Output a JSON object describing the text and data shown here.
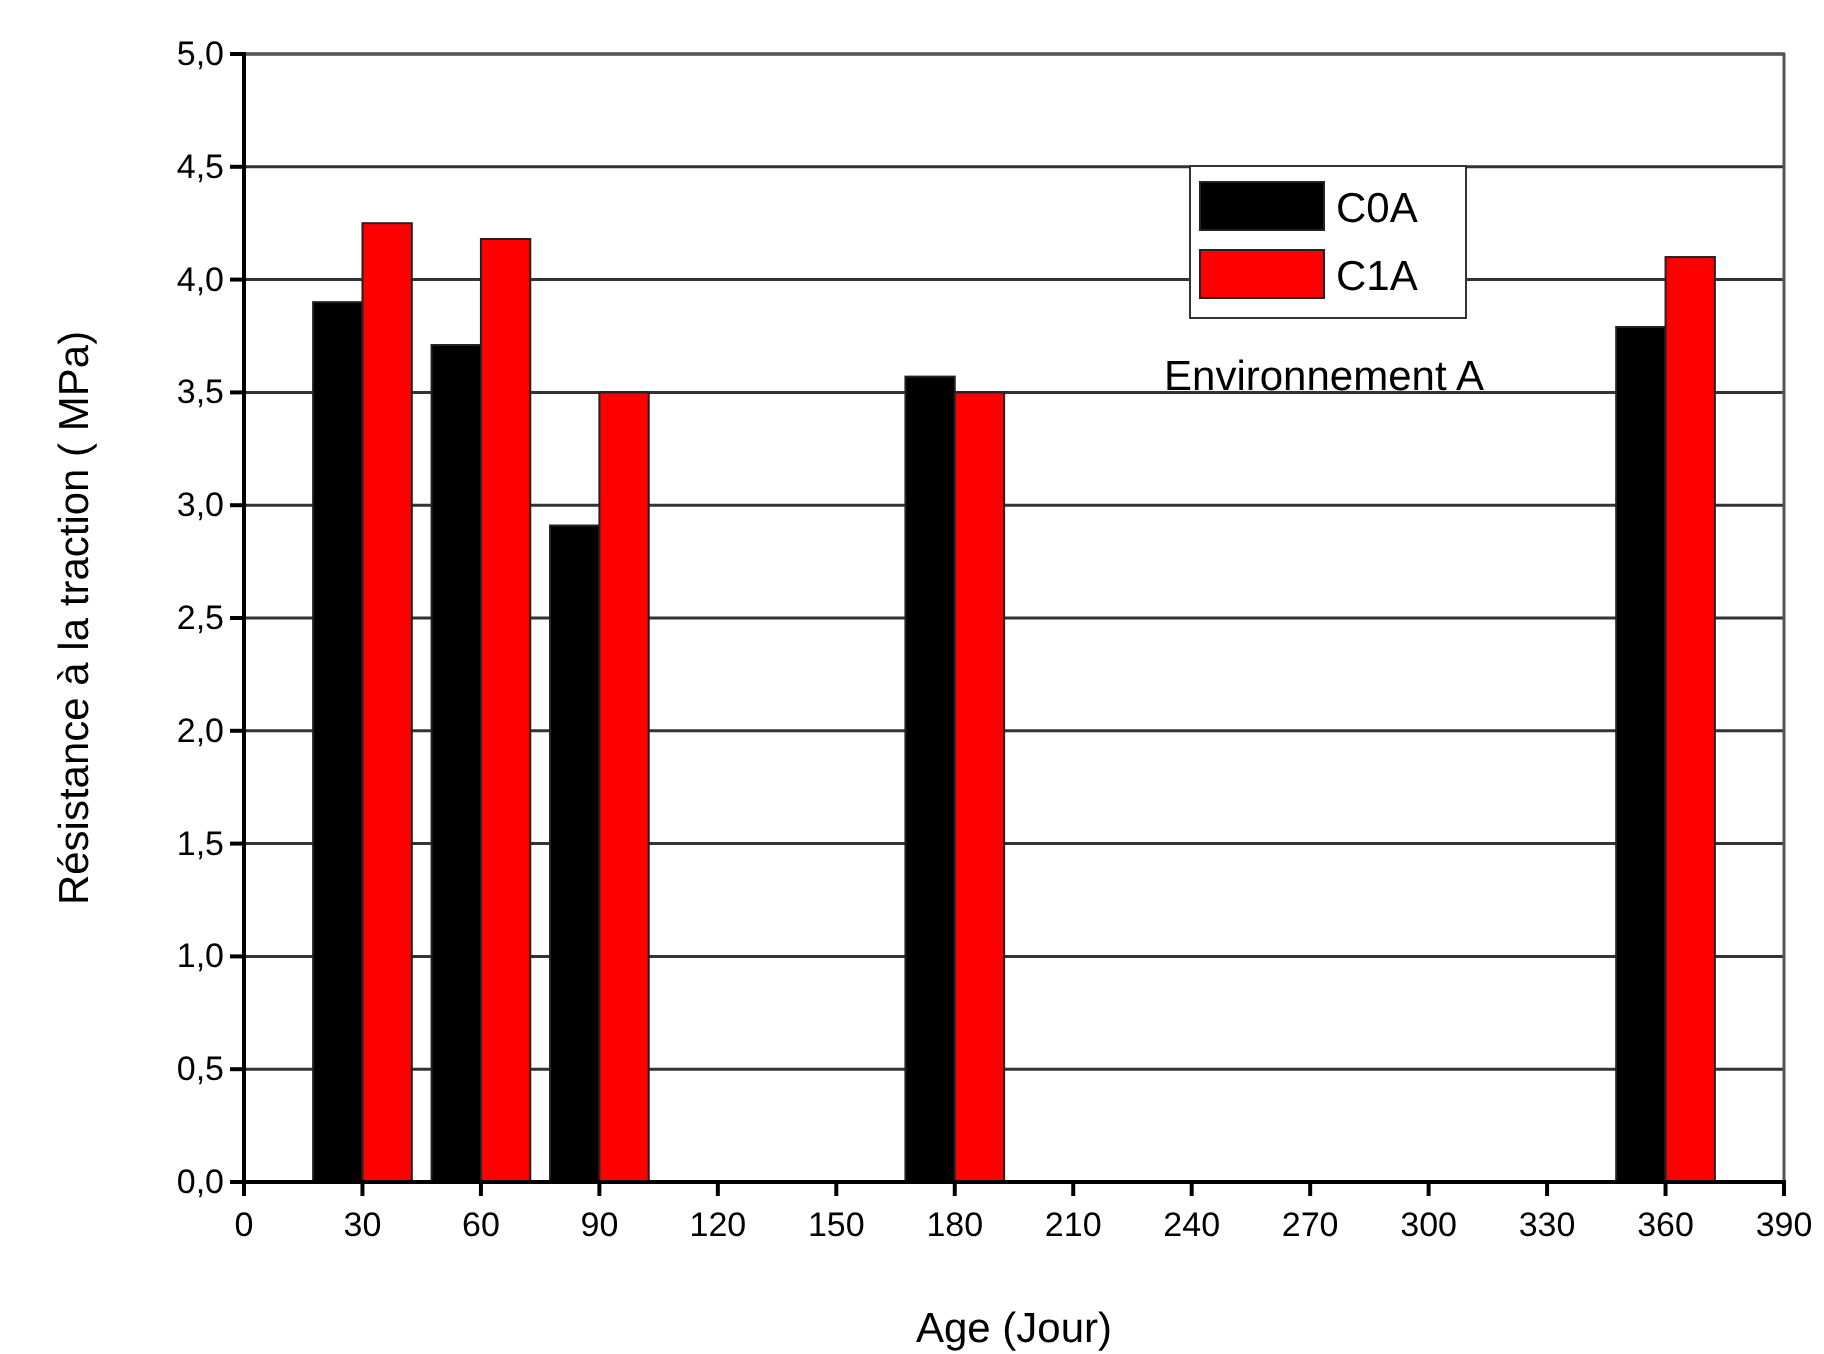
{
  "chart_data": {
    "type": "bar",
    "xlabel": "Age (Jour)",
    "ylabel": "Résistance à la traction ( MPa)",
    "x": [
      30,
      60,
      90,
      180,
      360
    ],
    "series": [
      {
        "name": "C0A",
        "color": "#000000",
        "values": [
          3.9,
          3.71,
          2.91,
          3.57,
          3.79
        ]
      },
      {
        "name": "C1A",
        "color": "#ff0000",
        "values": [
          4.25,
          4.18,
          3.5,
          3.5,
          4.1
        ]
      }
    ],
    "xlim": [
      0,
      390
    ],
    "xticks": [
      0,
      30,
      60,
      90,
      120,
      150,
      180,
      210,
      240,
      270,
      300,
      330,
      360,
      390
    ],
    "ylim": [
      0,
      5
    ],
    "yticks": [
      {
        "value": 0,
        "label": "0,0"
      },
      {
        "value": 0.5,
        "label": "0,5"
      },
      {
        "value": 1,
        "label": "1,0"
      },
      {
        "value": 1.5,
        "label": "1,5"
      },
      {
        "value": 2,
        "label": "2,0"
      },
      {
        "value": 2.5,
        "label": "2,5"
      },
      {
        "value": 3,
        "label": "3,0"
      },
      {
        "value": 3.5,
        "label": "3,5"
      },
      {
        "value": 4,
        "label": "4,0"
      },
      {
        "value": 4.5,
        "label": "4,5"
      },
      {
        "value": 5,
        "label": "5,0"
      }
    ],
    "grid": "y",
    "legend": "top right",
    "annotations": [
      "Environnement A"
    ]
  }
}
